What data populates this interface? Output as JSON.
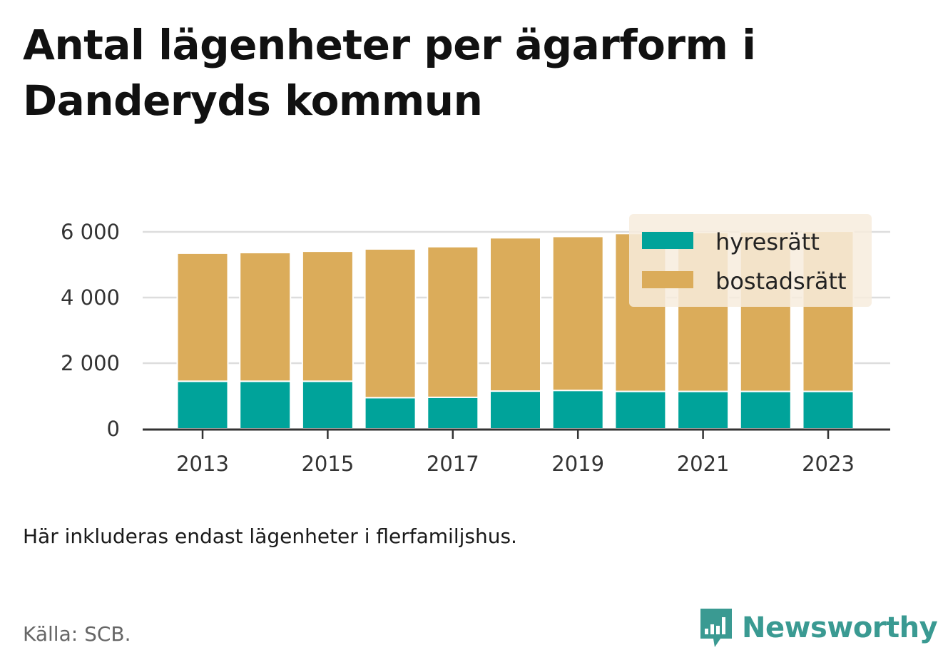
{
  "title": "Antal lägenheter per ägarform i Danderyds kommun",
  "note": "Här inkluderas endast lägenheter i flerfamiljshus.",
  "source": "Källa: SCB.",
  "brand": {
    "name": "Newsworthy",
    "icon": "newsworthy-bar-chart-icon"
  },
  "colors": {
    "hyresratt": "#00a39a",
    "bostadsratt": "#dbac5a",
    "legend_bg": "#f7ecdd",
    "grid": "#dddddd",
    "axis": "#333333"
  },
  "chart_data": {
    "type": "bar",
    "stacked": true,
    "categories": [
      "2013",
      "2014",
      "2015",
      "2016",
      "2017",
      "2018",
      "2019",
      "2020",
      "2021",
      "2022",
      "2023"
    ],
    "x_tick_labels": [
      "2013",
      "2015",
      "2017",
      "2019",
      "2021",
      "2023"
    ],
    "y_tick_labels": [
      "0",
      "2 000",
      "4 000",
      "6 000"
    ],
    "y_ticks": [
      0,
      2000,
      4000,
      6000
    ],
    "ylim": [
      0,
      6000
    ],
    "grid": true,
    "legend_position": "top-right",
    "series": [
      {
        "name": "hyresrätt",
        "color": "#00a39a",
        "values": [
          1450,
          1450,
          1450,
          950,
          960,
          1150,
          1170,
          1140,
          1140,
          1140,
          1140
        ]
      },
      {
        "name": "bostadsrätt",
        "color": "#dbac5a",
        "values": [
          3900,
          3920,
          3960,
          4530,
          4590,
          4670,
          4690,
          4810,
          4840,
          4860,
          4880
        ]
      }
    ]
  }
}
